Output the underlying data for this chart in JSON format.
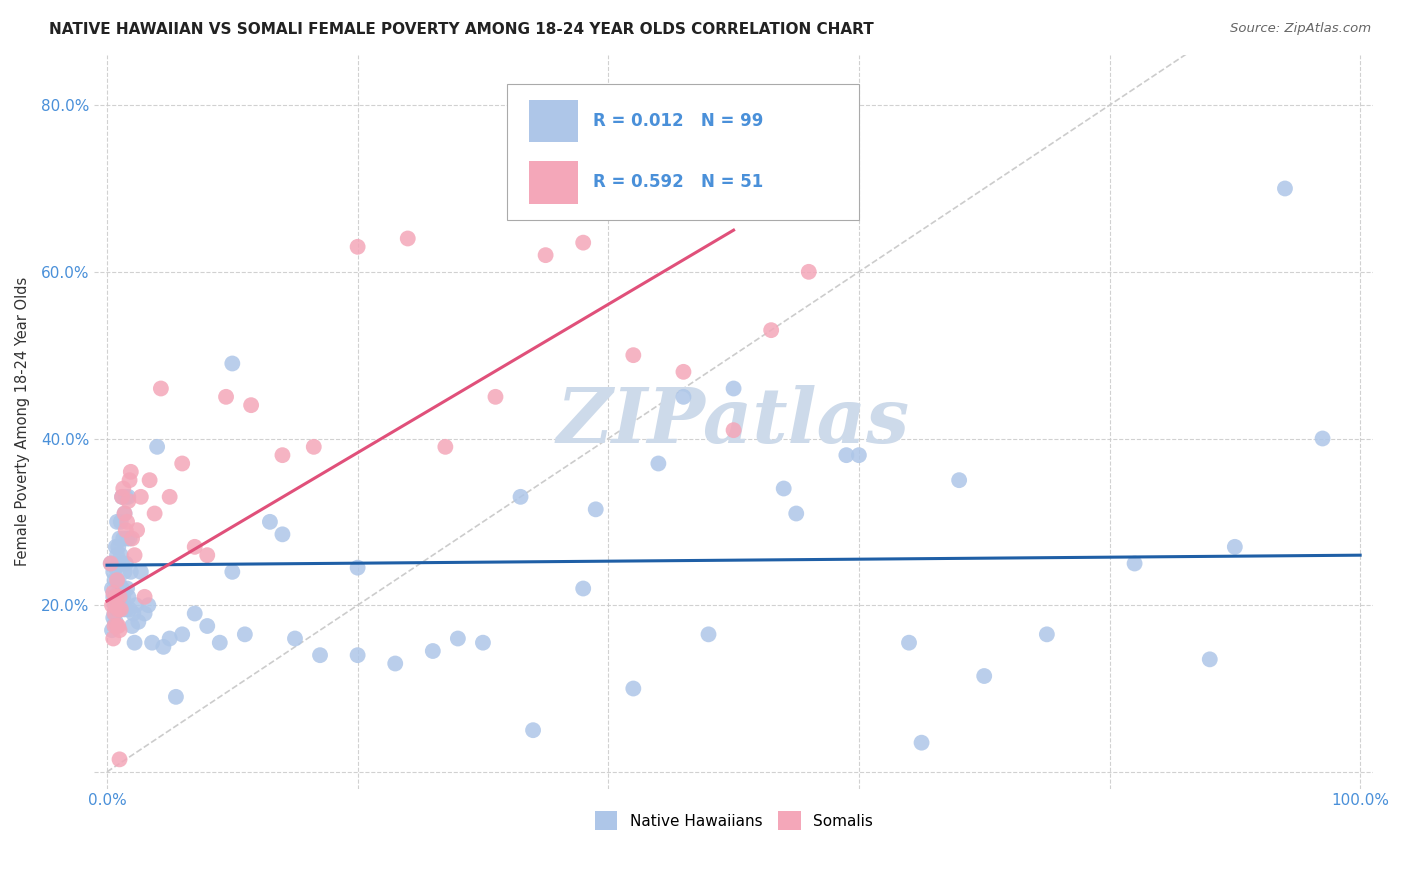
{
  "title": "NATIVE HAWAIIAN VS SOMALI FEMALE POVERTY AMONG 18-24 YEAR OLDS CORRELATION CHART",
  "source": "Source: ZipAtlas.com",
  "ylabel": "Female Poverty Among 18-24 Year Olds",
  "xlim": [
    -0.01,
    1.01
  ],
  "ylim": [
    -0.02,
    0.86
  ],
  "xticks": [
    0.0,
    0.2,
    0.4,
    0.6,
    0.8,
    1.0
  ],
  "xticklabels": [
    "0.0%",
    "",
    "",
    "",
    "",
    "100.0%"
  ],
  "yticks": [
    0.0,
    0.2,
    0.4,
    0.6,
    0.8
  ],
  "yticklabels": [
    "",
    "20.0%",
    "40.0%",
    "60.0%",
    "80.0%"
  ],
  "r_hawaiian": 0.012,
  "n_hawaiian": 99,
  "r_somali": 0.592,
  "n_somali": 51,
  "hawaiian_color": "#aec6e8",
  "somali_color": "#f4a7b9",
  "trend_hawaiian_color": "#1f5fa6",
  "trend_somali_color": "#e0507a",
  "diagonal_color": "#cccccc",
  "background_color": "#ffffff",
  "grid_color": "#cccccc",
  "watermark": "ZIPatlas",
  "watermark_color": "#cddaea",
  "legend_label_1": "Native Hawaiians",
  "legend_label_2": "Somalis",
  "tick_color": "#4a90d9",
  "hawaiian_x": [
    0.003,
    0.004,
    0.004,
    0.005,
    0.005,
    0.005,
    0.006,
    0.006,
    0.006,
    0.007,
    0.007,
    0.007,
    0.007,
    0.008,
    0.008,
    0.008,
    0.008,
    0.009,
    0.009,
    0.009,
    0.009,
    0.01,
    0.01,
    0.01,
    0.01,
    0.011,
    0.011,
    0.011,
    0.012,
    0.012,
    0.012,
    0.013,
    0.013,
    0.013,
    0.014,
    0.014,
    0.015,
    0.015,
    0.015,
    0.016,
    0.016,
    0.017,
    0.017,
    0.018,
    0.018,
    0.019,
    0.02,
    0.021,
    0.022,
    0.023,
    0.025,
    0.027,
    0.03,
    0.033,
    0.036,
    0.04,
    0.045,
    0.05,
    0.055,
    0.06,
    0.07,
    0.08,
    0.09,
    0.1,
    0.11,
    0.13,
    0.15,
    0.17,
    0.2,
    0.23,
    0.26,
    0.3,
    0.34,
    0.38,
    0.42,
    0.46,
    0.5,
    0.54,
    0.6,
    0.65,
    0.7,
    0.75,
    0.82,
    0.88,
    0.94,
    0.97,
    0.1,
    0.14,
    0.2,
    0.28,
    0.33,
    0.39,
    0.44,
    0.48,
    0.55,
    0.59,
    0.64,
    0.68,
    0.9
  ],
  "hawaiian_y": [
    0.25,
    0.22,
    0.17,
    0.21,
    0.24,
    0.185,
    0.2,
    0.23,
    0.19,
    0.21,
    0.245,
    0.18,
    0.27,
    0.2,
    0.26,
    0.23,
    0.3,
    0.195,
    0.27,
    0.215,
    0.25,
    0.2,
    0.225,
    0.195,
    0.28,
    0.21,
    0.26,
    0.3,
    0.22,
    0.25,
    0.33,
    0.21,
    0.28,
    0.195,
    0.31,
    0.24,
    0.195,
    0.25,
    0.33,
    0.22,
    0.28,
    0.21,
    0.33,
    0.195,
    0.28,
    0.24,
    0.175,
    0.19,
    0.155,
    0.2,
    0.18,
    0.24,
    0.19,
    0.2,
    0.155,
    0.39,
    0.15,
    0.16,
    0.09,
    0.165,
    0.19,
    0.175,
    0.155,
    0.24,
    0.165,
    0.3,
    0.16,
    0.14,
    0.14,
    0.13,
    0.145,
    0.155,
    0.05,
    0.22,
    0.1,
    0.45,
    0.46,
    0.34,
    0.38,
    0.035,
    0.115,
    0.165,
    0.25,
    0.135,
    0.7,
    0.4,
    0.49,
    0.285,
    0.245,
    0.16,
    0.33,
    0.315,
    0.37,
    0.165,
    0.31,
    0.38,
    0.155,
    0.35,
    0.27
  ],
  "somali_x": [
    0.003,
    0.004,
    0.005,
    0.005,
    0.006,
    0.006,
    0.007,
    0.007,
    0.008,
    0.008,
    0.009,
    0.009,
    0.01,
    0.01,
    0.011,
    0.012,
    0.013,
    0.014,
    0.015,
    0.016,
    0.017,
    0.018,
    0.019,
    0.02,
    0.022,
    0.024,
    0.027,
    0.03,
    0.034,
    0.038,
    0.043,
    0.05,
    0.06,
    0.07,
    0.08,
    0.095,
    0.115,
    0.14,
    0.165,
    0.2,
    0.24,
    0.27,
    0.31,
    0.35,
    0.38,
    0.42,
    0.46,
    0.5,
    0.53,
    0.56,
    0.01
  ],
  "somali_y": [
    0.25,
    0.2,
    0.215,
    0.16,
    0.19,
    0.175,
    0.2,
    0.21,
    0.175,
    0.23,
    0.175,
    0.195,
    0.21,
    0.17,
    0.195,
    0.33,
    0.34,
    0.31,
    0.29,
    0.3,
    0.325,
    0.35,
    0.36,
    0.28,
    0.26,
    0.29,
    0.33,
    0.21,
    0.35,
    0.31,
    0.46,
    0.33,
    0.37,
    0.27,
    0.26,
    0.45,
    0.44,
    0.38,
    0.39,
    0.63,
    0.64,
    0.39,
    0.45,
    0.62,
    0.635,
    0.5,
    0.48,
    0.41,
    0.53,
    0.6,
    0.015
  ],
  "hawaiian_trend_x": [
    0.0,
    1.0
  ],
  "hawaiian_trend_y": [
    0.248,
    0.26
  ],
  "somali_trend_x": [
    0.0,
    0.5
  ],
  "somali_trend_y": [
    0.205,
    0.65
  ]
}
